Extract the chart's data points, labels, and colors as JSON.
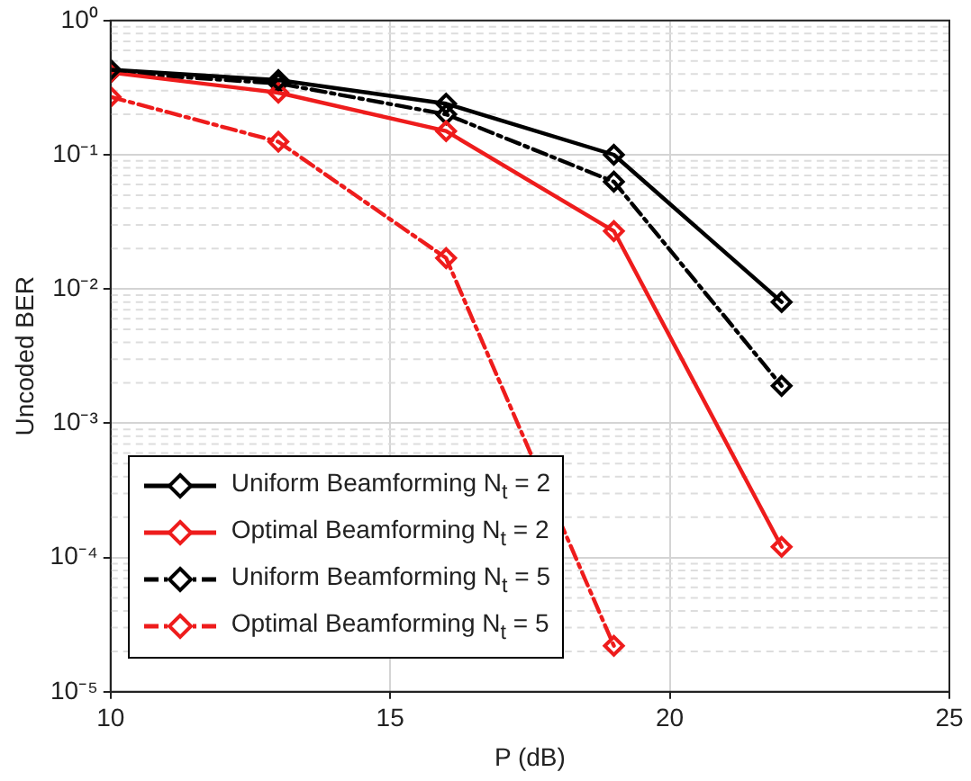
{
  "chart_data": {
    "type": "line",
    "xlabel": "P (dB)",
    "ylabel": "Uncoded BER",
    "x": [
      10,
      13,
      16,
      19,
      22
    ],
    "series": [
      {
        "name": "Uniform Beamforming N$_{t}$ = 2",
        "color": "#000000",
        "line_style": "solid",
        "values": [
          0.43,
          0.36,
          0.24,
          0.1,
          0.008
        ]
      },
      {
        "name": "Optimal Beamforming N$_{t}$ = 2",
        "color": "#ee1c1c",
        "line_style": "solid",
        "values": [
          0.41,
          0.29,
          0.15,
          0.027,
          0.00012
        ]
      },
      {
        "name": "Uniform Beamforming N$_{t}$ = 5",
        "color": "#000000",
        "line_style": "dashdot",
        "values": [
          0.41,
          0.34,
          0.2,
          0.063,
          0.0019
        ]
      },
      {
        "name": "Optimal Beamforming N$_{t}$ = 5",
        "color": "#ee1c1c",
        "line_style": "dashdot",
        "values": [
          0.27,
          0.125,
          0.017,
          2.2e-05,
          null
        ]
      }
    ],
    "xlim": [
      10,
      25
    ],
    "xticks": [
      10,
      15,
      20,
      25
    ],
    "ylim": [
      1e-05,
      1
    ],
    "yticks": [
      {
        "value": 1e-05,
        "label": "10⁻⁵"
      },
      {
        "value": 0.0001,
        "label": "10⁻⁴"
      },
      {
        "value": 0.001,
        "label": "10⁻³"
      },
      {
        "value": 0.01,
        "label": "10⁻²"
      },
      {
        "value": 0.1,
        "label": "10⁻¹"
      },
      {
        "value": 1,
        "label": "10⁰"
      }
    ],
    "log": "y",
    "grid": true,
    "legend": "bottom left",
    "marker": "diamond"
  }
}
